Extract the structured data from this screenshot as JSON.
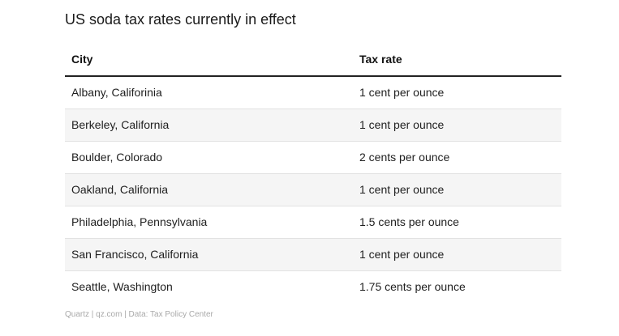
{
  "title": "US soda tax rates currently in effect",
  "table": {
    "headers": {
      "city": "City",
      "rate": "Tax rate"
    },
    "rows": [
      {
        "city": "Albany, Califorinia",
        "rate": "1 cent per ounce"
      },
      {
        "city": "Berkeley, California",
        "rate": "1 cent per ounce"
      },
      {
        "city": "Boulder, Colorado",
        "rate": "2 cents per ounce"
      },
      {
        "city": "Oakland, California",
        "rate": "1 cent per ounce"
      },
      {
        "city": "Philadelphia, Pennsylvania",
        "rate": "1.5 cents per ounce"
      },
      {
        "city": "San Francisco, California",
        "rate": "1 cent per ounce"
      },
      {
        "city": "Seattle, Washington",
        "rate": "1.75 cents per ounce"
      }
    ]
  },
  "footer": "Quartz | qz.com | Data: Tax Policy Center"
}
